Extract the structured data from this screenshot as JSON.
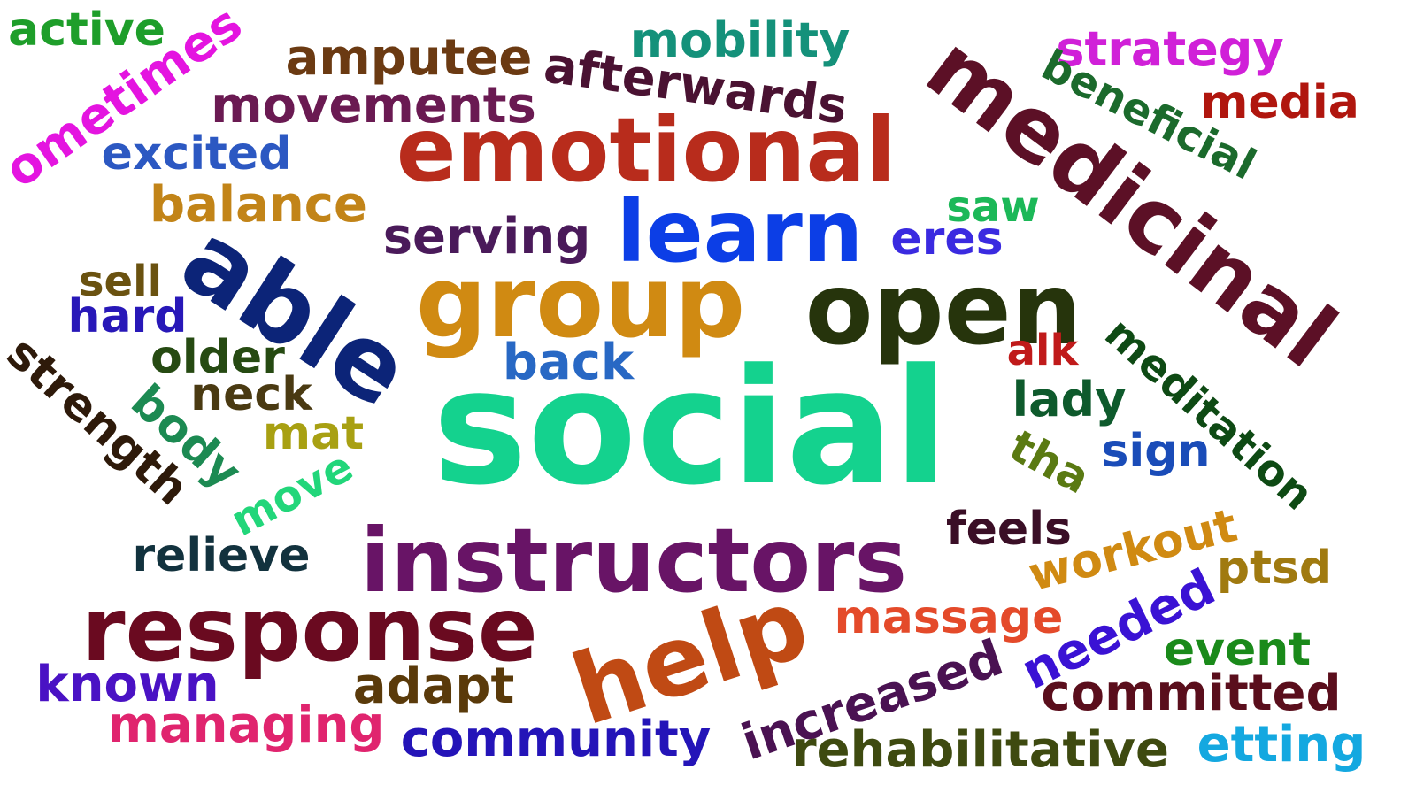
{
  "words": [
    {
      "text": "active",
      "color": "#1e9e2a"
    },
    {
      "text": "ometimes",
      "color": "#e414e0"
    },
    {
      "text": "amputee",
      "color": "#6b3a12"
    },
    {
      "text": "mobility",
      "color": "#14917a"
    },
    {
      "text": "afterwards",
      "color": "#4a1232"
    },
    {
      "text": "medicinal",
      "color": "#5c1026"
    },
    {
      "text": "strategy",
      "color": "#d020d8"
    },
    {
      "text": "beneficial",
      "color": "#1b6a2c"
    },
    {
      "text": "media",
      "color": "#b0160e"
    },
    {
      "text": "movements",
      "color": "#6a1a52"
    },
    {
      "text": "excited",
      "color": "#2c58c2"
    },
    {
      "text": "emotional",
      "color": "#b82c1c"
    },
    {
      "text": "balance",
      "color": "#c28418"
    },
    {
      "text": "saw",
      "color": "#1cb858"
    },
    {
      "text": "learn",
      "color": "#0c3ee6"
    },
    {
      "text": "serving",
      "color": "#4a1a5a"
    },
    {
      "text": "eres",
      "color": "#3a2ae0"
    },
    {
      "text": "able",
      "color": "#0c2478"
    },
    {
      "text": "group",
      "color": "#d08a12"
    },
    {
      "text": "open",
      "color": "#26340c"
    },
    {
      "text": "sell",
      "color": "#6a5210"
    },
    {
      "text": "hard",
      "color": "#2818b8"
    },
    {
      "text": "meditation",
      "color": "#0e4a14"
    },
    {
      "text": "strength",
      "color": "#2e1a0a"
    },
    {
      "text": "older",
      "color": "#264a12"
    },
    {
      "text": "back",
      "color": "#2868c4"
    },
    {
      "text": "alk",
      "color": "#c01a1a"
    },
    {
      "text": "neck",
      "color": "#4a3a12"
    },
    {
      "text": "social",
      "color": "#14d28e"
    },
    {
      "text": "lady",
      "color": "#0e5a2c"
    },
    {
      "text": "body",
      "color": "#1c8a52"
    },
    {
      "text": "mat",
      "color": "#a8a012"
    },
    {
      "text": "tha",
      "color": "#5a7a12"
    },
    {
      "text": "sign",
      "color": "#1a4cb8"
    },
    {
      "text": "move",
      "color": "#22d67a"
    },
    {
      "text": "feels",
      "color": "#3a0e26"
    },
    {
      "text": "relieve",
      "color": "#12323e"
    },
    {
      "text": "instructors",
      "color": "#681466"
    },
    {
      "text": "workout",
      "color": "#d08a12"
    },
    {
      "text": "ptsd",
      "color": "#a07a10"
    },
    {
      "text": "response",
      "color": "#6a0a20"
    },
    {
      "text": "massage",
      "color": "#e44a2a"
    },
    {
      "text": "help",
      "color": "#c04a14"
    },
    {
      "text": "needed",
      "color": "#3a12d4"
    },
    {
      "text": "event",
      "color": "#1a8a1a"
    },
    {
      "text": "known",
      "color": "#4a12c4"
    },
    {
      "text": "adapt",
      "color": "#5a3a0a"
    },
    {
      "text": "increased",
      "color": "#4a1252"
    },
    {
      "text": "committed",
      "color": "#5a0e1c"
    },
    {
      "text": "managing",
      "color": "#e0246e"
    },
    {
      "text": "community",
      "color": "#2414b8"
    },
    {
      "text": "rehabilitative",
      "color": "#3e4a10"
    },
    {
      "text": "etting",
      "color": "#14a8e0"
    }
  ]
}
